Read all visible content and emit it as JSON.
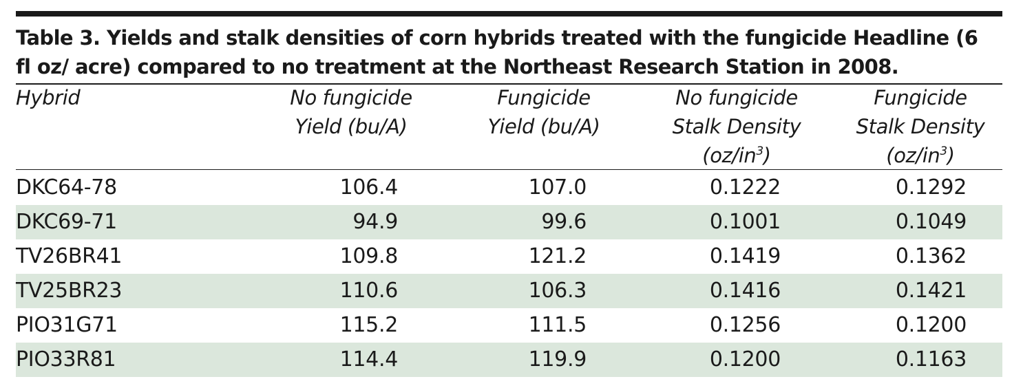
{
  "table": {
    "caption_line1": "Table 3. Yields and stalk densities of corn hybrids treated with the fungicide Headline (6",
    "caption_line2": "fl oz/ acre) compared to no treatment at the Northeast Research Station in 2008.",
    "headers": [
      {
        "lines": [
          "Hybrid"
        ]
      },
      {
        "lines": [
          "No fungicide",
          "Yield (bu/A)"
        ]
      },
      {
        "lines": [
          "Fungicide",
          "Yield (bu/A)"
        ]
      },
      {
        "lines": [
          "No fungicide",
          "Stalk Density",
          "(oz/in",
          "3",
          ")"
        ]
      },
      {
        "lines": [
          "Fungicide",
          "Stalk Density",
          "(oz/in",
          "3",
          ")"
        ]
      }
    ],
    "rows": [
      [
        "DKC64-78",
        "106.4",
        "107.0",
        "0.1222",
        "0.1292"
      ],
      [
        "DKC69-71",
        "94.9",
        "99.6",
        "0.1001",
        "0.1049"
      ],
      [
        "TV26BR41",
        "109.8",
        "121.2",
        "0.1419",
        "0.1362"
      ],
      [
        "TV25BR23",
        "110.6",
        "106.3",
        "0.1416",
        "0.1421"
      ],
      [
        "PIO31G71",
        "115.2",
        "111.5",
        "0.1256",
        "0.1200"
      ],
      [
        "PIO33R81",
        "114.4",
        "119.9",
        "0.1200",
        "0.1163"
      ]
    ],
    "colors": {
      "rule": "#1a1a1a",
      "shade": "#dbe7dc",
      "text": "#1a1a1a"
    }
  }
}
